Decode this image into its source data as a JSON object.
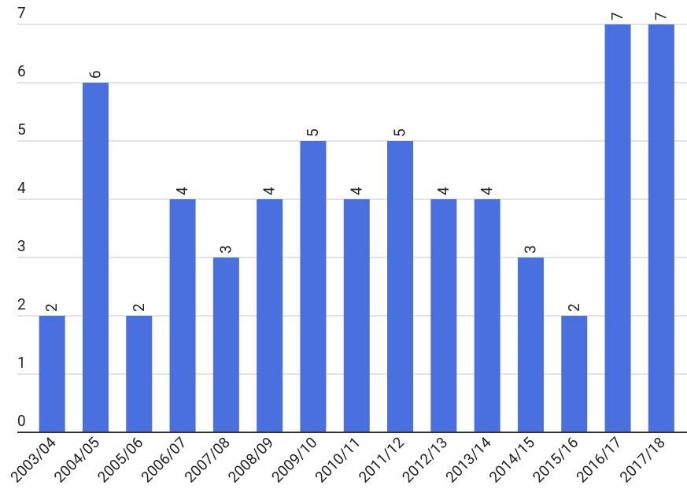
{
  "chart_data": {
    "type": "bar",
    "categories": [
      "2003/04",
      "2004/05",
      "2005/06",
      "2006/07",
      "2007/08",
      "2008/09",
      "2009/10",
      "2010/11",
      "2011/12",
      "2012/13",
      "2013/14",
      "2014/15",
      "2015/16",
      "2016/17",
      "2017/18"
    ],
    "values": [
      2,
      6,
      2,
      4,
      3,
      4,
      5,
      4,
      5,
      4,
      4,
      3,
      2,
      7,
      7
    ],
    "color": "#4a6fde",
    "ylim": [
      0,
      7
    ],
    "yticks": [
      0,
      1,
      2,
      3,
      4,
      5,
      6,
      7
    ],
    "grid": true
  }
}
